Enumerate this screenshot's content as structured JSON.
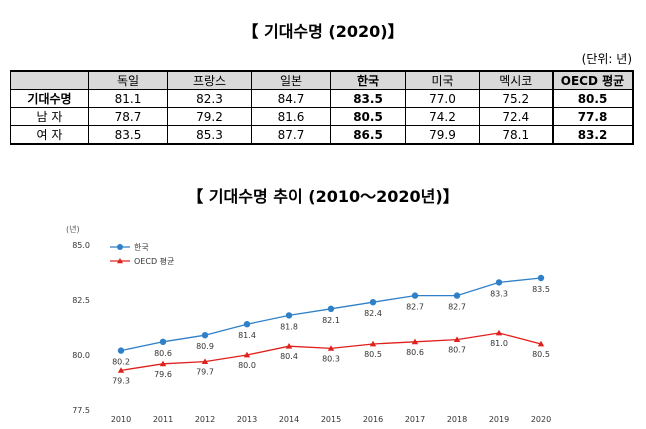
{
  "table": {
    "title": "【 기대수명 (2020)】",
    "unit": "(단위: 년)",
    "columns": [
      "",
      "독일",
      "프랑스",
      "일본",
      "한국",
      "미국",
      "멕시코",
      "OECD 평균"
    ],
    "rows": [
      {
        "label": "기대수명",
        "values": [
          "81.1",
          "82.3",
          "84.7",
          "83.5",
          "77.0",
          "75.2",
          "80.5"
        ]
      },
      {
        "label": "남  자",
        "values": [
          "78.7",
          "79.2",
          "81.6",
          "80.5",
          "74.2",
          "72.4",
          "77.8"
        ]
      },
      {
        "label": "여  자",
        "values": [
          "83.5",
          "85.3",
          "87.7",
          "86.5",
          "79.9",
          "78.1",
          "83.2"
        ]
      }
    ]
  },
  "chart_data": {
    "type": "line",
    "title": "【 기대수명  추이 (2010～2020년)】",
    "ylabel": "(년)",
    "xlabel": "",
    "x": [
      "2010",
      "2011",
      "2012",
      "2013",
      "2014",
      "2015",
      "2016",
      "2017",
      "2018",
      "2019",
      "2020"
    ],
    "ylim": [
      77.5,
      85.0
    ],
    "yticks": [
      "85.0",
      "82.5",
      "80.0",
      "77.5"
    ],
    "legend_position": "top-left",
    "series": [
      {
        "name": "한국",
        "color": "#2f80c8",
        "marker": "circle",
        "values": [
          80.2,
          80.6,
          80.9,
          81.4,
          81.8,
          82.1,
          82.4,
          82.7,
          82.7,
          83.3,
          83.5
        ],
        "labels": [
          "80.2",
          "80.6",
          "80.9",
          "81.4",
          "81.8",
          "82.1",
          "82.4",
          "82.7",
          "82.7",
          "83.3",
          "83.5"
        ]
      },
      {
        "name": "OECD 평균",
        "color": "#e0201c",
        "marker": "triangle",
        "values": [
          79.3,
          79.6,
          79.7,
          80.0,
          80.4,
          80.3,
          80.5,
          80.6,
          80.7,
          81.0,
          80.5
        ],
        "labels": [
          "79.3",
          "79.6",
          "79.7",
          "80.0",
          "80.4",
          "80.3",
          "80.5",
          "80.6",
          "80.7",
          "81.0",
          "80.5"
        ]
      }
    ]
  }
}
